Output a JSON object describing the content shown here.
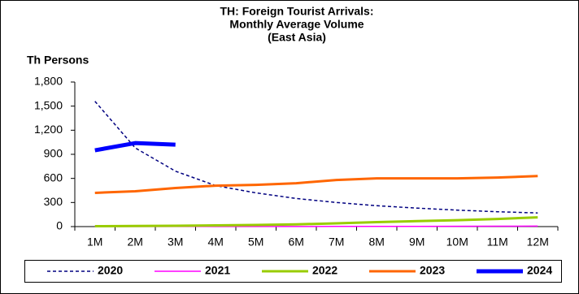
{
  "chart_data": {
    "type": "line",
    "title": [
      "TH: Foreign Tourist Arrivals:",
      "Monthly Average Volume",
      "(East Asia)"
    ],
    "y_label": "Th Persons",
    "categories": [
      "1M",
      "2M",
      "3M",
      "4M",
      "5M",
      "6M",
      "7M",
      "8M",
      "9M",
      "10M",
      "11M",
      "12M"
    ],
    "ylim": [
      0,
      1800
    ],
    "yticks": [
      0,
      300,
      600,
      900,
      {
        "value": 1200,
        "label": "1,200"
      },
      {
        "value": 1500,
        "label": "1,500"
      },
      {
        "value": 1800,
        "label": "1,800"
      }
    ],
    "grid": false,
    "legend": "bottom",
    "series": [
      {
        "name": "2020",
        "color": "#000080",
        "dashed": true,
        "width": 1.5,
        "values": [
          1560,
          980,
          690,
          510,
          420,
          350,
          300,
          260,
          230,
          205,
          185,
          170
        ]
      },
      {
        "name": "2021",
        "color": "#ff00ff",
        "dashed": false,
        "width": 1.5,
        "values": [
          1,
          1,
          1,
          1,
          1,
          1,
          2,
          3,
          3,
          4,
          5,
          6
        ]
      },
      {
        "name": "2022",
        "color": "#99cc00",
        "dashed": false,
        "width": 3,
        "values": [
          5,
          7,
          10,
          15,
          20,
          28,
          40,
          55,
          68,
          80,
          95,
          115
        ]
      },
      {
        "name": "2023",
        "color": "#ff6600",
        "dashed": false,
        "width": 3,
        "values": [
          420,
          440,
          480,
          510,
          520,
          540,
          580,
          600,
          600,
          600,
          610,
          630
        ]
      },
      {
        "name": "2024",
        "color": "#0000ff",
        "dashed": false,
        "width": 5,
        "values": [
          950,
          1040,
          1020,
          null,
          null,
          null,
          null,
          null,
          null,
          null,
          null,
          null
        ]
      }
    ]
  }
}
